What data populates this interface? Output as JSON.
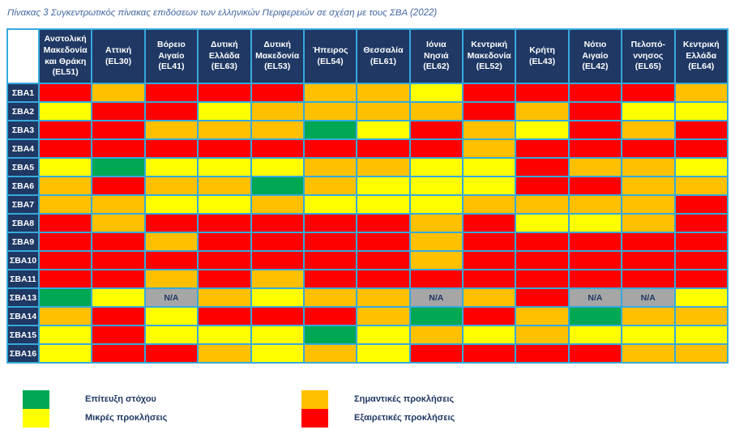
{
  "title": "Πίνακας 3 Συγκεντρωτικός πίνακας επιδόσεων των ελληνικών Περιφερειών σε σχέση με τους ΣΒΑ (2022)",
  "na_label": "N/A",
  "colors": {
    "achieved": "#00A854",
    "minor": "#FFFF00",
    "significant": "#FFC000",
    "extreme": "#FF0000",
    "na": "#A6A6A6",
    "header_bg": "#1F3864",
    "grid_border": "#36A9DC",
    "title_text": "#4466A3"
  },
  "legend": [
    {
      "key": "achieved",
      "label": "Επίτευξη στόχου"
    },
    {
      "key": "minor",
      "label": "Μικρές προκλήσεις"
    },
    {
      "key": "significant",
      "label": "Σημαντικές προκλήσεις"
    },
    {
      "key": "extreme",
      "label": "Εξαιρετικές προκλήσεις"
    }
  ],
  "chart_data": {
    "type": "heatmap",
    "title": "Πίνακας 3 Συγκεντρωτικός πίνακας επιδόσεων των ελληνικών Περιφερειών σε σχέση με τους ΣΒΑ (2022)",
    "value_legend": {
      "G": "Επίτευξη στόχου",
      "Y": "Μικρές προκλήσεις",
      "O": "Σημαντικές προκλήσεις",
      "R": "Εξαιρετικές προκλήσεις",
      "N": "N/A"
    },
    "columns": [
      {
        "name": "Ανστολική Μακεδονία και Θράκη",
        "code": "EL51",
        "display": "Ανστολική\nΜακεδονία\nκαι Θράκη\n(EL51)"
      },
      {
        "name": "Αττική",
        "code": "EL30",
        "display": "Αττική\n(EL30)"
      },
      {
        "name": "Βόρειο Αιγαίο",
        "code": "EL41",
        "display": "Βόρειο\nΑιγαίο\n(EL41)"
      },
      {
        "name": "Δυτική Ελλάδα",
        "code": "EL63",
        "display": "Δυτική\nΕλλάδα\n(EL63)"
      },
      {
        "name": "Δυτική Μακεδονία",
        "code": "EL53",
        "display": "Δυτική\nΜακεδονία\n(EL53)"
      },
      {
        "name": "Ήπειρος",
        "code": "EL54",
        "display": "Ήπειρος\n(EL54)"
      },
      {
        "name": "Θεσσαλία",
        "code": "EL61",
        "display": "Θεσσαλία\n(EL61)"
      },
      {
        "name": "Ιόνια Νησιά",
        "code": "EL62",
        "display": "Ιόνια\nΝησιά\n(EL62)"
      },
      {
        "name": "Κεντρική Μακεδονία",
        "code": "EL52",
        "display": "Κεντρική\nΜακεδονία\n(EL52)"
      },
      {
        "name": "Κρήτη",
        "code": "EL43",
        "display": "Κρήτη\n(EL43)"
      },
      {
        "name": "Νότιο Αιγαίο",
        "code": "EL42",
        "display": "Νότιο\nΑιγαίο\n(EL42)"
      },
      {
        "name": "Πελοπόννησος",
        "code": "EL65",
        "display": "Πελοπό-\nννησος\n(EL65)"
      },
      {
        "name": "Κεντρική Ελλάδα",
        "code": "EL64",
        "display": "Κεντρική\nΕλλάδα\n(EL64)"
      }
    ],
    "rows": [
      "ΣΒΑ1",
      "ΣΒΑ2",
      "ΣΒΑ3",
      "ΣΒΑ4",
      "ΣΒΑ5",
      "ΣΒΑ6",
      "ΣΒΑ7",
      "ΣΒΑ8",
      "ΣΒΑ9",
      "ΣΒΑ10",
      "ΣΒΑ11",
      "ΣΒΑ13",
      "ΣΒΑ14",
      "ΣΒΑ15",
      "ΣΒΑ16"
    ],
    "values": [
      [
        "R",
        "O",
        "R",
        "R",
        "R",
        "O",
        "O",
        "Y",
        "R",
        "R",
        "R",
        "R",
        "O"
      ],
      [
        "Y",
        "R",
        "R",
        "Y",
        "O",
        "O",
        "O",
        "O",
        "R",
        "O",
        "R",
        "Y",
        "Y"
      ],
      [
        "R",
        "R",
        "O",
        "O",
        "O",
        "G",
        "Y",
        "R",
        "O",
        "Y",
        "R",
        "O",
        "R"
      ],
      [
        "R",
        "R",
        "R",
        "R",
        "R",
        "R",
        "R",
        "R",
        "O",
        "R",
        "R",
        "R",
        "R"
      ],
      [
        "Y",
        "G",
        "Y",
        "Y",
        "Y",
        "O",
        "O",
        "Y",
        "Y",
        "R",
        "O",
        "O",
        "Y"
      ],
      [
        "O",
        "R",
        "O",
        "O",
        "G",
        "O",
        "Y",
        "Y",
        "Y",
        "R",
        "R",
        "O",
        "O"
      ],
      [
        "O",
        "O",
        "Y",
        "Y",
        "O",
        "Y",
        "Y",
        "Y",
        "O",
        "O",
        "O",
        "O",
        "R"
      ],
      [
        "R",
        "O",
        "R",
        "R",
        "R",
        "R",
        "R",
        "O",
        "R",
        "Y",
        "Y",
        "O",
        "R"
      ],
      [
        "R",
        "R",
        "O",
        "R",
        "R",
        "R",
        "R",
        "O",
        "R",
        "R",
        "R",
        "R",
        "R"
      ],
      [
        "R",
        "R",
        "R",
        "R",
        "R",
        "R",
        "R",
        "O",
        "R",
        "R",
        "R",
        "R",
        "R"
      ],
      [
        "R",
        "R",
        "O",
        "R",
        "O",
        "R",
        "R",
        "R",
        "R",
        "R",
        "R",
        "R",
        "R"
      ],
      [
        "G",
        "Y",
        "N",
        "O",
        "Y",
        "O",
        "O",
        "N",
        "O",
        "R",
        "N",
        "N",
        "Y"
      ],
      [
        "O",
        "R",
        "Y",
        "R",
        "R",
        "R",
        "O",
        "G",
        "R",
        "O",
        "G",
        "O",
        "O"
      ],
      [
        "Y",
        "R",
        "Y",
        "Y",
        "Y",
        "G",
        "Y",
        "O",
        "Y",
        "O",
        "Y",
        "Y",
        "Y"
      ],
      [
        "Y",
        "R",
        "R",
        "O",
        "Y",
        "O",
        "Y",
        "R",
        "R",
        "R",
        "R",
        "O",
        "O"
      ]
    ]
  }
}
